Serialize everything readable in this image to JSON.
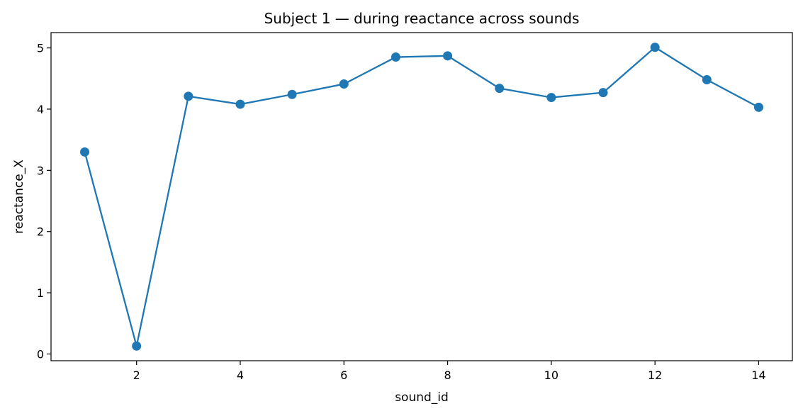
{
  "chart_data": {
    "type": "line",
    "title": "Subject 1 — during reactance across sounds",
    "xlabel": "sound_id",
    "ylabel": "reactance_X",
    "x": [
      1,
      2,
      3,
      4,
      5,
      6,
      7,
      8,
      9,
      10,
      11,
      12,
      13,
      14
    ],
    "series": [
      {
        "values": [
          3.3,
          0.13,
          4.21,
          4.08,
          4.24,
          4.41,
          4.85,
          4.87,
          4.34,
          4.19,
          4.27,
          5.01,
          4.48,
          4.03
        ],
        "color": "#1f77b4",
        "marker": "circle"
      }
    ],
    "xlim": [
      0.35,
      14.65
    ],
    "ylim": [
      -0.11,
      5.25
    ],
    "xticks": [
      2,
      4,
      6,
      8,
      10,
      12,
      14
    ],
    "yticks": [
      0,
      1,
      2,
      3,
      4,
      5
    ],
    "grid": false,
    "legend": "none"
  }
}
